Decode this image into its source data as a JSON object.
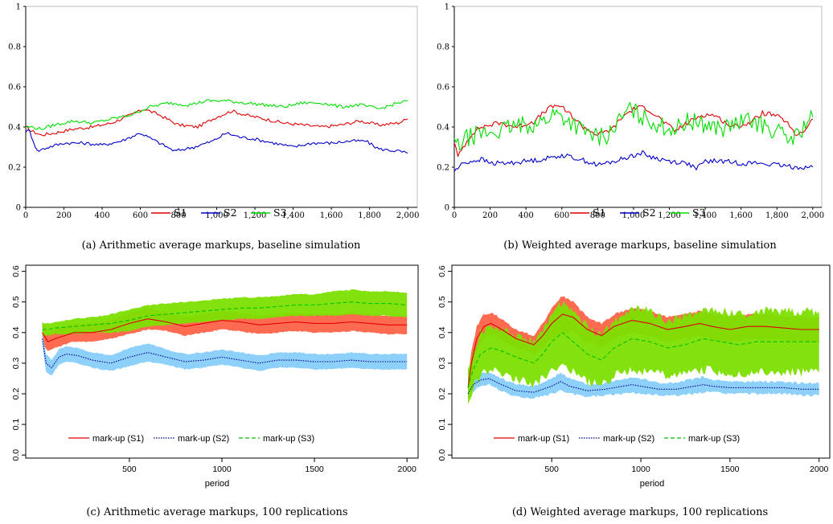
{
  "chart_data": [
    {
      "id": "a",
      "type": "line",
      "caption": "(a) Arithmetic average markups, baseline simulation",
      "xlabel": "",
      "ylabel": "",
      "xlim": [
        0,
        2050
      ],
      "ylim": [
        0,
        1
      ],
      "xticks": [
        0,
        200,
        400,
        600,
        800,
        1000,
        1200,
        1400,
        1600,
        1800,
        2000
      ],
      "xtick_labels": [
        "0",
        "200",
        "400",
        "600",
        "800",
        "1,000",
        "1,200",
        "1,400",
        "1,600",
        "1,800",
        "2,000"
      ],
      "yticks": [
        0,
        0.2,
        0.4,
        0.6,
        0.8,
        1
      ],
      "ytick_labels": [
        "0",
        "0.2",
        "0.4",
        "0.6",
        "0.8",
        "1"
      ],
      "legend_position": "bottom",
      "series": [
        {
          "name": "S1",
          "color": "#e00000",
          "x": [
            0,
            30,
            80,
            150,
            250,
            350,
            450,
            550,
            620,
            700,
            800,
            900,
            1000,
            1080,
            1150,
            1250,
            1350,
            1450,
            1550,
            1650,
            1750,
            1850,
            1950,
            2000
          ],
          "values": [
            0.4,
            0.38,
            0.36,
            0.37,
            0.39,
            0.4,
            0.42,
            0.46,
            0.49,
            0.46,
            0.41,
            0.4,
            0.45,
            0.48,
            0.46,
            0.44,
            0.42,
            0.41,
            0.4,
            0.41,
            0.43,
            0.41,
            0.42,
            0.44
          ]
        },
        {
          "name": "S2",
          "color": "#0000cc",
          "x": [
            0,
            20,
            60,
            120,
            200,
            300,
            400,
            500,
            600,
            680,
            780,
            880,
            980,
            1050,
            1120,
            1200,
            1300,
            1400,
            1500,
            1600,
            1700,
            1780,
            1850,
            1950,
            2000
          ],
          "values": [
            0.38,
            0.38,
            0.28,
            0.3,
            0.32,
            0.32,
            0.31,
            0.33,
            0.37,
            0.33,
            0.28,
            0.3,
            0.33,
            0.37,
            0.35,
            0.34,
            0.32,
            0.3,
            0.32,
            0.32,
            0.33,
            0.33,
            0.29,
            0.28,
            0.27
          ]
        },
        {
          "name": "S3",
          "color": "#00dd00",
          "x": [
            0,
            30,
            80,
            150,
            250,
            350,
            450,
            550,
            650,
            750,
            850,
            950,
            1050,
            1150,
            1250,
            1350,
            1450,
            1550,
            1650,
            1750,
            1850,
            1950,
            2000
          ],
          "values": [
            0.4,
            0.4,
            0.39,
            0.41,
            0.43,
            0.42,
            0.44,
            0.46,
            0.5,
            0.52,
            0.51,
            0.53,
            0.53,
            0.52,
            0.51,
            0.5,
            0.52,
            0.52,
            0.5,
            0.51,
            0.49,
            0.52,
            0.53
          ]
        }
      ]
    },
    {
      "id": "b",
      "type": "line",
      "caption": "(b) Weighted average markups, baseline simulation",
      "xlabel": "",
      "ylabel": "",
      "xlim": [
        0,
        2050
      ],
      "ylim": [
        0,
        1
      ],
      "xticks": [
        0,
        200,
        400,
        600,
        800,
        1000,
        1200,
        1400,
        1600,
        1800,
        2000
      ],
      "xtick_labels": [
        "0",
        "200",
        "400",
        "600",
        "800",
        "1,000",
        "1,200",
        "1,400",
        "1,600",
        "1,800",
        "2,000"
      ],
      "yticks": [
        0,
        0.2,
        0.4,
        0.6,
        0.8,
        1
      ],
      "ytick_labels": [
        "0",
        "0.2",
        "0.4",
        "0.6",
        "0.8",
        "1"
      ],
      "legend_position": "bottom",
      "series": [
        {
          "name": "S1",
          "color": "#e00000",
          "x": [
            0,
            20,
            50,
            100,
            150,
            250,
            350,
            450,
            520,
            580,
            650,
            720,
            800,
            880,
            950,
            1020,
            1080,
            1150,
            1230,
            1300,
            1380,
            1450,
            1550,
            1650,
            1720,
            1780,
            1850,
            1900,
            1950,
            2000
          ],
          "values": [
            0.33,
            0.25,
            0.3,
            0.37,
            0.4,
            0.42,
            0.4,
            0.43,
            0.49,
            0.51,
            0.46,
            0.4,
            0.36,
            0.39,
            0.46,
            0.5,
            0.49,
            0.44,
            0.38,
            0.42,
            0.46,
            0.46,
            0.4,
            0.42,
            0.47,
            0.46,
            0.43,
            0.36,
            0.38,
            0.44
          ]
        },
        {
          "name": "S2",
          "color": "#0000cc",
          "x": [
            0,
            50,
            100,
            150,
            200,
            300,
            400,
            500,
            600,
            700,
            800,
            900,
            1000,
            1050,
            1100,
            1200,
            1300,
            1350,
            1400,
            1500,
            1600,
            1700,
            1800,
            1900,
            2000
          ],
          "values": [
            0.18,
            0.22,
            0.23,
            0.24,
            0.22,
            0.22,
            0.23,
            0.24,
            0.26,
            0.24,
            0.21,
            0.23,
            0.26,
            0.27,
            0.25,
            0.23,
            0.22,
            0.19,
            0.23,
            0.23,
            0.22,
            0.22,
            0.21,
            0.2,
            0.2
          ]
        },
        {
          "name": "S3",
          "color": "#00dd00",
          "x": [
            0,
            20,
            60,
            120,
            180,
            250,
            320,
            400,
            480,
            560,
            640,
            720,
            800,
            860,
            920,
            980,
            1040,
            1100,
            1170,
            1240,
            1300,
            1360,
            1420,
            1500,
            1580,
            1660,
            1740,
            1800,
            1860,
            1920,
            1960,
            2000
          ],
          "values": [
            0.33,
            0.3,
            0.34,
            0.36,
            0.37,
            0.38,
            0.4,
            0.41,
            0.42,
            0.47,
            0.43,
            0.38,
            0.35,
            0.36,
            0.43,
            0.49,
            0.45,
            0.43,
            0.4,
            0.39,
            0.43,
            0.42,
            0.41,
            0.39,
            0.42,
            0.43,
            0.4,
            0.38,
            0.34,
            0.36,
            0.42,
            0.45
          ]
        }
      ]
    },
    {
      "id": "c",
      "type": "line",
      "caption": "(c) Arithmetic average markups, 100 replications",
      "xlabel": "period",
      "ylabel": "",
      "xlim": [
        -60,
        2060
      ],
      "ylim": [
        -0.01,
        0.62
      ],
      "xticks": [
        500,
        1000,
        1500,
        2000
      ],
      "xtick_labels": [
        "500",
        "1000",
        "1500",
        "2000"
      ],
      "yticks": [
        0,
        0.1,
        0.2,
        0.3,
        0.4,
        0.5,
        0.6
      ],
      "ytick_labels": [
        "0.0",
        "0.1",
        "0.2",
        "0.3",
        "0.4",
        "0.5",
        "0.6"
      ],
      "legend_position": "bottom-left",
      "series": [
        {
          "name": "mark-up (S1)",
          "color": "#e00000",
          "band_color": "#ff6347",
          "style": "solid",
          "x": [
            30,
            60,
            100,
            150,
            200,
            300,
            400,
            500,
            600,
            700,
            800,
            900,
            1000,
            1100,
            1200,
            1300,
            1400,
            1500,
            1600,
            1700,
            1800,
            1900,
            2000
          ],
          "values": [
            0.4,
            0.37,
            0.38,
            0.39,
            0.4,
            0.4,
            0.41,
            0.43,
            0.445,
            0.435,
            0.42,
            0.43,
            0.44,
            0.435,
            0.425,
            0.43,
            0.435,
            0.43,
            0.43,
            0.435,
            0.43,
            0.425,
            0.425
          ],
          "band": [
            0.035,
            0.03,
            0.03,
            0.03,
            0.03,
            0.03,
            0.03,
            0.035,
            0.035,
            0.03,
            0.03,
            0.03,
            0.03,
            0.03,
            0.03,
            0.03,
            0.03,
            0.03,
            0.03,
            0.03,
            0.03,
            0.03,
            0.03
          ]
        },
        {
          "name": "mark-up (S2)",
          "color": "#00008b",
          "band_color": "#87cefa",
          "style": "dotted",
          "x": [
            30,
            50,
            80,
            120,
            160,
            220,
            300,
            400,
            500,
            600,
            700,
            800,
            900,
            1000,
            1100,
            1200,
            1300,
            1400,
            1500,
            1600,
            1700,
            1800,
            1900,
            2000
          ],
          "values": [
            0.38,
            0.3,
            0.285,
            0.32,
            0.33,
            0.325,
            0.31,
            0.3,
            0.32,
            0.335,
            0.32,
            0.305,
            0.31,
            0.32,
            0.31,
            0.3,
            0.31,
            0.31,
            0.305,
            0.305,
            0.31,
            0.305,
            0.305,
            0.305
          ],
          "band": [
            0.02,
            0.03,
            0.025,
            0.025,
            0.025,
            0.025,
            0.025,
            0.025,
            0.03,
            0.03,
            0.025,
            0.025,
            0.025,
            0.025,
            0.025,
            0.025,
            0.025,
            0.025,
            0.025,
            0.025,
            0.025,
            0.025,
            0.025,
            0.025
          ]
        },
        {
          "name": "mark-up (S3)",
          "color": "#00c000",
          "band_color": "#7ce000",
          "style": "dashed",
          "x": [
            30,
            60,
            100,
            200,
            300,
            400,
            500,
            600,
            700,
            800,
            900,
            1000,
            1100,
            1200,
            1300,
            1400,
            1500,
            1600,
            1700,
            1800,
            1900,
            2000
          ],
          "values": [
            0.41,
            0.41,
            0.415,
            0.42,
            0.425,
            0.43,
            0.44,
            0.455,
            0.46,
            0.465,
            0.47,
            0.475,
            0.48,
            0.48,
            0.485,
            0.49,
            0.49,
            0.495,
            0.5,
            0.495,
            0.495,
            0.49
          ],
          "band": [
            0.02,
            0.02,
            0.02,
            0.025,
            0.025,
            0.03,
            0.035,
            0.035,
            0.035,
            0.035,
            0.035,
            0.035,
            0.035,
            0.035,
            0.035,
            0.035,
            0.035,
            0.04,
            0.04,
            0.04,
            0.04,
            0.04
          ]
        }
      ]
    },
    {
      "id": "d",
      "type": "line",
      "caption": "(d) Weighted average markups, 100 replications",
      "xlabel": "period",
      "ylabel": "",
      "xlim": [
        -60,
        2060
      ],
      "ylim": [
        -0.01,
        0.62
      ],
      "xticks": [
        500,
        1000,
        1500,
        2000
      ],
      "xtick_labels": [
        "500",
        "1000",
        "1500",
        "2000"
      ],
      "yticks": [
        0,
        0.1,
        0.2,
        0.3,
        0.4,
        0.5,
        0.6
      ],
      "ytick_labels": [
        "0.0",
        "0.1",
        "0.2",
        "0.3",
        "0.4",
        "0.5",
        "0.6"
      ],
      "legend_position": "bottom-left",
      "series": [
        {
          "name": "mark-up (S1)",
          "color": "#e00000",
          "band_color": "#ff6347",
          "style": "solid",
          "x": [
            30,
            50,
            80,
            120,
            160,
            220,
            300,
            400,
            450,
            500,
            560,
            620,
            700,
            780,
            850,
            950,
            1050,
            1150,
            1250,
            1330,
            1400,
            1500,
            1600,
            1700,
            1800,
            1900,
            2000
          ],
          "values": [
            0.22,
            0.3,
            0.38,
            0.42,
            0.43,
            0.41,
            0.38,
            0.36,
            0.39,
            0.43,
            0.46,
            0.45,
            0.41,
            0.39,
            0.42,
            0.44,
            0.43,
            0.41,
            0.42,
            0.43,
            0.42,
            0.41,
            0.42,
            0.42,
            0.415,
            0.41,
            0.41
          ],
          "band": [
            0.03,
            0.04,
            0.04,
            0.04,
            0.035,
            0.035,
            0.03,
            0.03,
            0.04,
            0.05,
            0.06,
            0.05,
            0.04,
            0.04,
            0.04,
            0.04,
            0.04,
            0.04,
            0.04,
            0.04,
            0.04,
            0.04,
            0.04,
            0.04,
            0.04,
            0.04,
            0.04
          ]
        },
        {
          "name": "mark-up (S2)",
          "color": "#00008b",
          "band_color": "#87cefa",
          "style": "dotted",
          "x": [
            30,
            60,
            100,
            150,
            200,
            300,
            400,
            500,
            550,
            600,
            700,
            800,
            900,
            950,
            1000,
            1100,
            1200,
            1300,
            1350,
            1400,
            1500,
            1600,
            1700,
            1800,
            1900,
            2000
          ],
          "values": [
            0.2,
            0.23,
            0.245,
            0.25,
            0.235,
            0.21,
            0.205,
            0.225,
            0.24,
            0.225,
            0.21,
            0.215,
            0.225,
            0.23,
            0.225,
            0.215,
            0.215,
            0.225,
            0.23,
            0.225,
            0.22,
            0.22,
            0.22,
            0.22,
            0.215,
            0.215
          ],
          "band": [
            0.02,
            0.02,
            0.02,
            0.02,
            0.02,
            0.02,
            0.02,
            0.025,
            0.03,
            0.025,
            0.02,
            0.02,
            0.025,
            0.025,
            0.025,
            0.02,
            0.02,
            0.025,
            0.025,
            0.02,
            0.02,
            0.02,
            0.02,
            0.02,
            0.02,
            0.02
          ]
        },
        {
          "name": "mark-up (S3)",
          "color": "#00c000",
          "band_color": "#7ce000",
          "style": "dashed",
          "x": [
            30,
            60,
            100,
            160,
            220,
            300,
            400,
            450,
            500,
            560,
            620,
            700,
            780,
            850,
            950,
            1050,
            1150,
            1250,
            1350,
            1450,
            1550,
            1650,
            1750,
            1850,
            1950,
            2000
          ],
          "values": [
            0.22,
            0.28,
            0.33,
            0.35,
            0.34,
            0.32,
            0.3,
            0.33,
            0.37,
            0.4,
            0.37,
            0.33,
            0.31,
            0.35,
            0.38,
            0.37,
            0.35,
            0.36,
            0.38,
            0.37,
            0.36,
            0.37,
            0.37,
            0.37,
            0.37,
            0.37
          ],
          "band": [
            0.05,
            0.06,
            0.07,
            0.07,
            0.07,
            0.07,
            0.07,
            0.08,
            0.09,
            0.1,
            0.1,
            0.09,
            0.08,
            0.09,
            0.1,
            0.1,
            0.09,
            0.09,
            0.1,
            0.1,
            0.1,
            0.1,
            0.1,
            0.1,
            0.1,
            0.1
          ]
        }
      ]
    }
  ]
}
